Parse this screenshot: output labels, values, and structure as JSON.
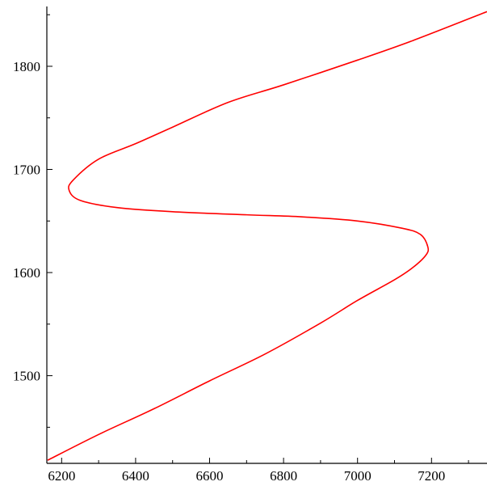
{
  "chart_data": {
    "type": "line",
    "title": "",
    "xlabel": "",
    "ylabel": "",
    "xlim": [
      6160,
      7350
    ],
    "ylim": [
      1415,
      1858
    ],
    "x_ticks": [
      6200,
      6400,
      6600,
      6800,
      7000,
      7200
    ],
    "x_tick_labels": [
      "6200",
      "6400",
      "6600",
      "6800",
      "7000",
      "7200"
    ],
    "y_ticks": [
      1500,
      1600,
      1700,
      1800
    ],
    "y_tick_labels": [
      "1500",
      "1600",
      "1700",
      "1800"
    ],
    "grid": false,
    "series": [
      {
        "color": "#ff0000",
        "points": [
          [
            6162,
            1418
          ],
          [
            6300,
            1443
          ],
          [
            6450,
            1468
          ],
          [
            6600,
            1495
          ],
          [
            6750,
            1521
          ],
          [
            6900,
            1551
          ],
          [
            7000,
            1573
          ],
          [
            7100,
            1593
          ],
          [
            7150,
            1605
          ],
          [
            7185,
            1617
          ],
          [
            7190,
            1625
          ],
          [
            7170,
            1637
          ],
          [
            7120,
            1643
          ],
          [
            7000,
            1650
          ],
          [
            6850,
            1654
          ],
          [
            6700,
            1656
          ],
          [
            6500,
            1659
          ],
          [
            6350,
            1663
          ],
          [
            6250,
            1670
          ],
          [
            6220,
            1680
          ],
          [
            6232,
            1690
          ],
          [
            6300,
            1710
          ],
          [
            6400,
            1725
          ],
          [
            6500,
            1741
          ],
          [
            6650,
            1765
          ],
          [
            6800,
            1782
          ],
          [
            7000,
            1806
          ],
          [
            7150,
            1825
          ],
          [
            7350,
            1853
          ]
        ]
      }
    ]
  }
}
